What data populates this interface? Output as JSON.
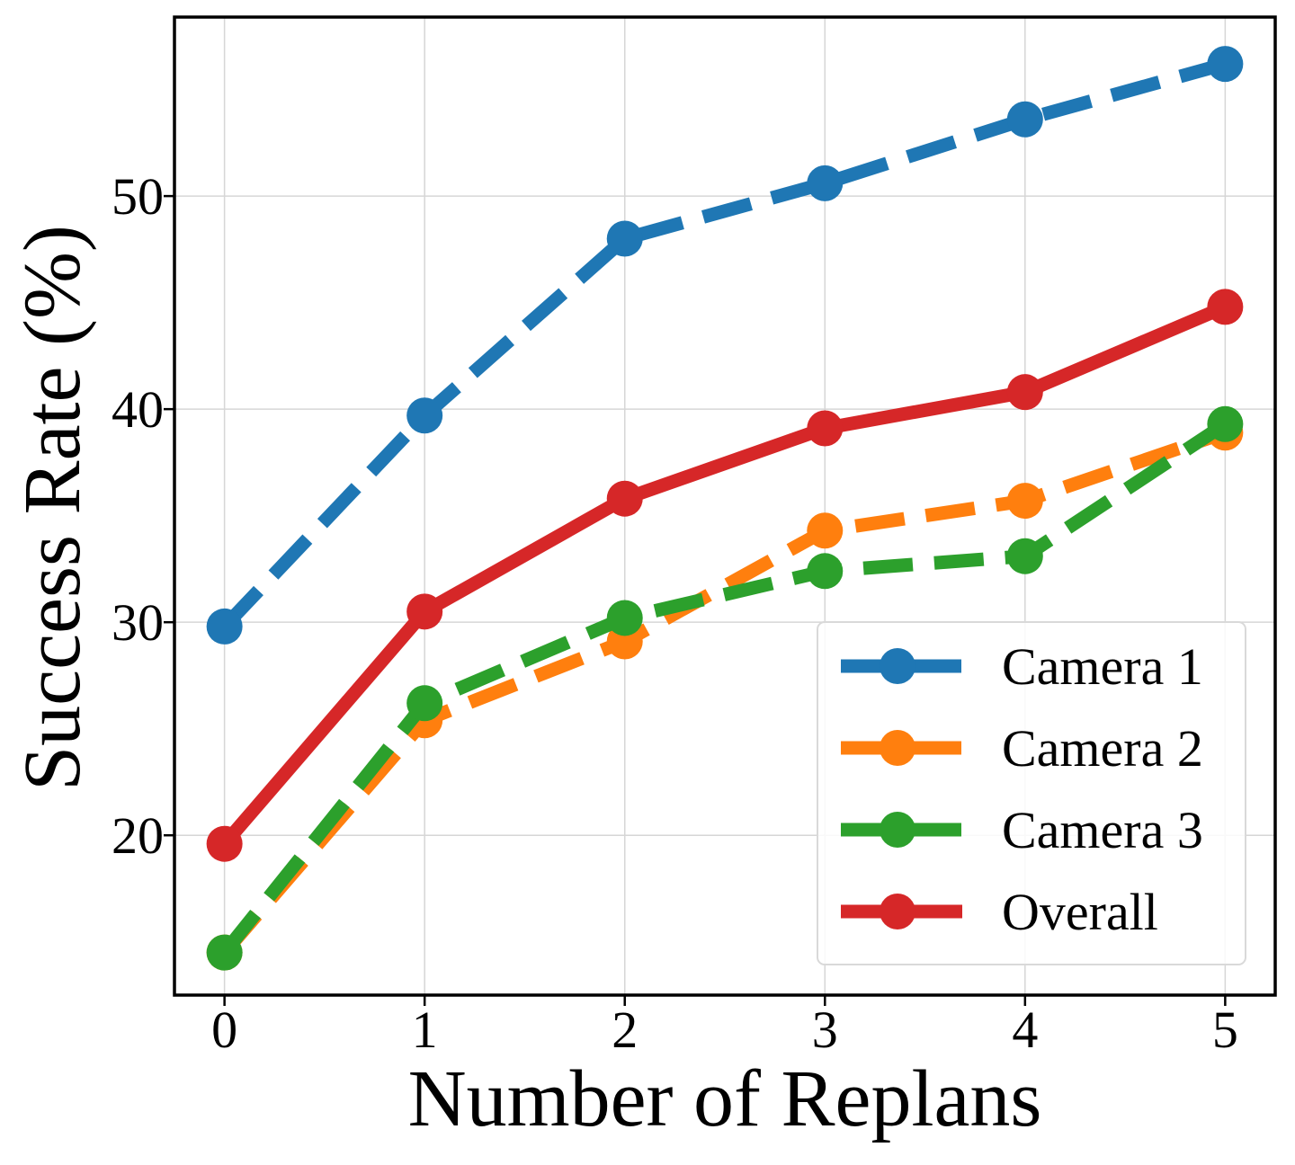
{
  "chart_data": {
    "type": "line",
    "title": "",
    "xlabel": "Number of Replans",
    "ylabel": "Success Rate (%)",
    "x": [
      0,
      1,
      2,
      3,
      4,
      5
    ],
    "x_ticks": [
      "0",
      "1",
      "2",
      "3",
      "4",
      "5"
    ],
    "y_ticks": [
      "20",
      "30",
      "40",
      "50"
    ],
    "xlim": [
      -0.25,
      5.25
    ],
    "ylim": [
      12.5,
      58.4
    ],
    "grid": true,
    "legend_position": "lower-right",
    "series": [
      {
        "name": "Camera 1",
        "values": [
          29.8,
          39.7,
          48.0,
          50.6,
          53.6,
          56.2
        ],
        "color": "#1f77b4",
        "style": "dashed"
      },
      {
        "name": "Camera 2",
        "values": [
          14.5,
          25.4,
          29.1,
          34.3,
          35.7,
          38.9
        ],
        "color": "#ff7f0e",
        "style": "dashed"
      },
      {
        "name": "Camera 3",
        "values": [
          14.5,
          26.2,
          30.2,
          32.4,
          33.1,
          39.3
        ],
        "color": "#2ca02c",
        "style": "dashed"
      },
      {
        "name": "Overall",
        "values": [
          19.6,
          30.5,
          35.8,
          39.1,
          40.8,
          44.8
        ],
        "color": "#d62728",
        "style": "solid"
      }
    ]
  }
}
